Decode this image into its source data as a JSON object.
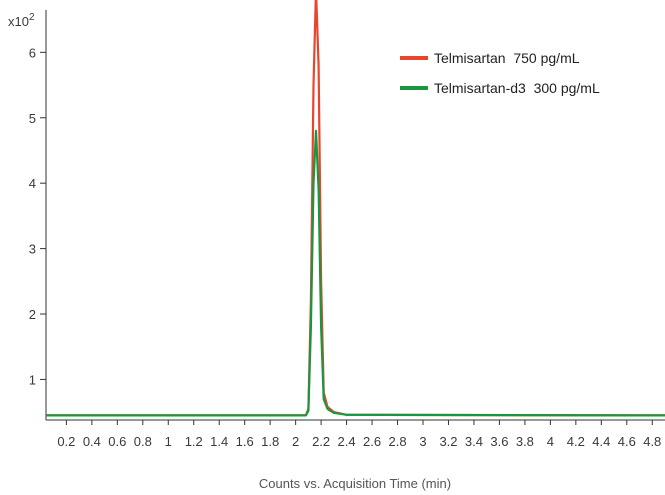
{
  "chart_data": {
    "type": "line",
    "xlabel": "Counts vs. Acquisition Time (min)",
    "y_multiplier": "x10",
    "y_exponent": "2",
    "xlim": [
      0.04,
      4.9
    ],
    "ylim": [
      0.38,
      6.8
    ],
    "x_ticks": [
      "0.2",
      "0.4",
      "0.6",
      "0.8",
      "1",
      "1.2",
      "1.4",
      "1.6",
      "1.8",
      "2",
      "2.2",
      "2.4",
      "2.6",
      "2.8",
      "3",
      "3.2",
      "3.4",
      "3.6",
      "3.8",
      "4",
      "4.2",
      "4.4",
      "4.6",
      "4.8"
    ],
    "y_ticks": [
      "1",
      "2",
      "3",
      "4",
      "5",
      "6"
    ],
    "legend_position": "top-right",
    "series": [
      {
        "name": "Telmisartan  750 pg/mL",
        "color": "#e8452c",
        "x": [
          0.04,
          2.08,
          2.1,
          2.12,
          2.14,
          2.16,
          2.18,
          2.2,
          2.22,
          2.25,
          2.3,
          2.4,
          2.5,
          4.9
        ],
        "y": [
          0.45,
          0.45,
          0.55,
          2.2,
          5.5,
          6.95,
          5.8,
          2.5,
          0.8,
          0.58,
          0.5,
          0.46,
          0.46,
          0.45
        ]
      },
      {
        "name": "Telmisartan-d3  300 pg/mL",
        "color": "#1a9641",
        "x": [
          0.04,
          2.08,
          2.1,
          2.12,
          2.14,
          2.16,
          2.18,
          2.2,
          2.22,
          2.25,
          2.3,
          2.4,
          2.5,
          4.9
        ],
        "y": [
          0.45,
          0.45,
          0.52,
          1.8,
          4.0,
          4.8,
          3.9,
          1.8,
          0.7,
          0.55,
          0.49,
          0.46,
          0.46,
          0.45
        ]
      }
    ]
  }
}
